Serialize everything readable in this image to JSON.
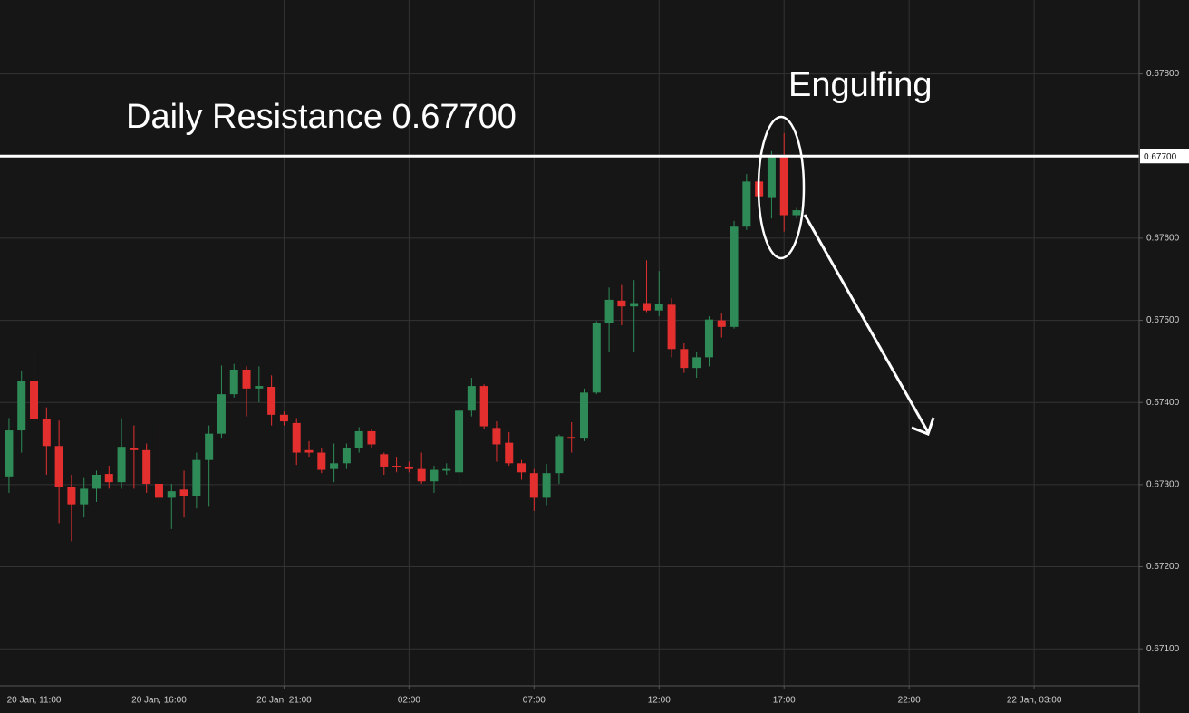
{
  "chart_data": {
    "type": "candlestick",
    "annotations": [
      {
        "text": "Daily Resistance 0.67700"
      },
      {
        "text": "Engulfing"
      }
    ],
    "resistance": {
      "value": 0.677,
      "label": "0.67700"
    },
    "xlim": [
      -0.72,
      90.4
    ],
    "xticks": [
      {
        "value": 2,
        "label": "20 Jan, 11:00"
      },
      {
        "value": 12,
        "label": "20 Jan, 16:00"
      },
      {
        "value": 22,
        "label": "20 Jan, 21:00"
      },
      {
        "value": 32,
        "label": "02:00"
      },
      {
        "value": 42,
        "label": "07:00"
      },
      {
        "value": 52,
        "label": "12:00"
      },
      {
        "value": 62,
        "label": "17:00"
      },
      {
        "value": 72,
        "label": "22:00"
      },
      {
        "value": 82,
        "label": "22 Jan, 03:00"
      }
    ],
    "ylim": [
      0.67055,
      0.6789
    ],
    "yticks": [
      {
        "value": 0.671,
        "label": "0.67100"
      },
      {
        "value": 0.672,
        "label": "0.67200"
      },
      {
        "value": 0.673,
        "label": "0.67300"
      },
      {
        "value": 0.674,
        "label": "0.67400"
      },
      {
        "value": 0.675,
        "label": "0.67500"
      },
      {
        "value": 0.676,
        "label": "0.67600"
      },
      {
        "value": 0.678,
        "label": "0.67800"
      }
    ],
    "grid": true,
    "up_color": "#2e8b57",
    "down_color": "#e3302f",
    "open": [
      0.6731,
      0.67366,
      0.67426,
      0.6738,
      0.67347,
      0.67297,
      0.67276,
      0.67295,
      0.67313,
      0.67303,
      0.67344,
      0.67342,
      0.67301,
      0.67284,
      0.67294,
      0.67286,
      0.6733,
      0.67362,
      0.6741,
      0.6744,
      0.67417,
      0.67419,
      0.67385,
      0.67375,
      0.67342,
      0.67339,
      0.67319,
      0.67326,
      0.67345,
      0.67365,
      0.67337,
      0.67323,
      0.67322,
      0.67319,
      0.67304,
      0.67317,
      0.67315,
      0.6739,
      0.6742,
      0.67369,
      0.67351,
      0.67326,
      0.67314,
      0.67284,
      0.67314,
      0.67358,
      0.67356,
      0.67412,
      0.67497,
      0.67524,
      0.67517,
      0.67521,
      0.67512,
      0.67519,
      0.67465,
      0.67442,
      0.67455,
      0.675,
      0.67492,
      0.67614,
      0.67669,
      0.6765,
      0.67699,
      0.67628
    ],
    "high": [
      0.67381,
      0.67439,
      0.67465,
      0.67394,
      0.67378,
      0.67312,
      0.67308,
      0.67317,
      0.67323,
      0.67381,
      0.67372,
      0.6735,
      0.67372,
      0.67301,
      0.67317,
      0.67339,
      0.67372,
      0.67445,
      0.67447,
      0.67444,
      0.67444,
      0.67433,
      0.67389,
      0.67381,
      0.67353,
      0.67345,
      0.6735,
      0.6735,
      0.6737,
      0.67367,
      0.67339,
      0.67334,
      0.67328,
      0.67339,
      0.67323,
      0.67326,
      0.67394,
      0.6743,
      0.67422,
      0.67377,
      0.67364,
      0.6733,
      0.67319,
      0.67325,
      0.67361,
      0.67376,
      0.67417,
      0.67499,
      0.6754,
      0.67543,
      0.67549,
      0.67573,
      0.6756,
      0.67527,
      0.67472,
      0.67461,
      0.67505,
      0.67509,
      0.67621,
      0.67678,
      0.67672,
      0.67706,
      0.67728,
      0.67637
    ],
    "low": [
      0.6729,
      0.67339,
      0.67372,
      0.67312,
      0.67253,
      0.67231,
      0.6726,
      0.67279,
      0.67295,
      0.67295,
      0.67295,
      0.6729,
      0.67273,
      0.67246,
      0.6726,
      0.67271,
      0.67273,
      0.67356,
      0.67406,
      0.67383,
      0.674,
      0.67372,
      0.67372,
      0.67324,
      0.67334,
      0.67314,
      0.67303,
      0.67319,
      0.67339,
      0.67345,
      0.67312,
      0.67315,
      0.67315,
      0.67301,
      0.6729,
      0.67312,
      0.673,
      0.67383,
      0.67368,
      0.67328,
      0.67323,
      0.67306,
      0.67268,
      0.67275,
      0.67301,
      0.67339,
      0.67353,
      0.6741,
      0.67461,
      0.67494,
      0.67461,
      0.6751,
      0.67505,
      0.67455,
      0.67436,
      0.6743,
      0.67444,
      0.67479,
      0.6749,
      0.6761,
      0.67648,
      0.67624,
      0.67608,
      0.67624
    ],
    "close": [
      0.67366,
      0.67426,
      0.6738,
      0.67347,
      0.67297,
      0.67276,
      0.67295,
      0.67312,
      0.67303,
      0.67346,
      0.67342,
      0.67301,
      0.67284,
      0.67292,
      0.67286,
      0.6733,
      0.67362,
      0.6741,
      0.6744,
      0.67417,
      0.6742,
      0.67385,
      0.67377,
      0.67339,
      0.67339,
      0.67318,
      0.67326,
      0.67345,
      0.67365,
      0.67349,
      0.67322,
      0.67321,
      0.67319,
      0.67304,
      0.67318,
      0.67319,
      0.6739,
      0.6742,
      0.67371,
      0.67349,
      0.67326,
      0.67315,
      0.67284,
      0.67314,
      0.67359,
      0.67356,
      0.67412,
      0.67497,
      0.67525,
      0.67517,
      0.67521,
      0.67512,
      0.6752,
      0.67465,
      0.67442,
      0.67455,
      0.67501,
      0.67492,
      0.67614,
      0.67669,
      0.67651,
      0.67699,
      0.67628,
      0.67634
    ]
  }
}
